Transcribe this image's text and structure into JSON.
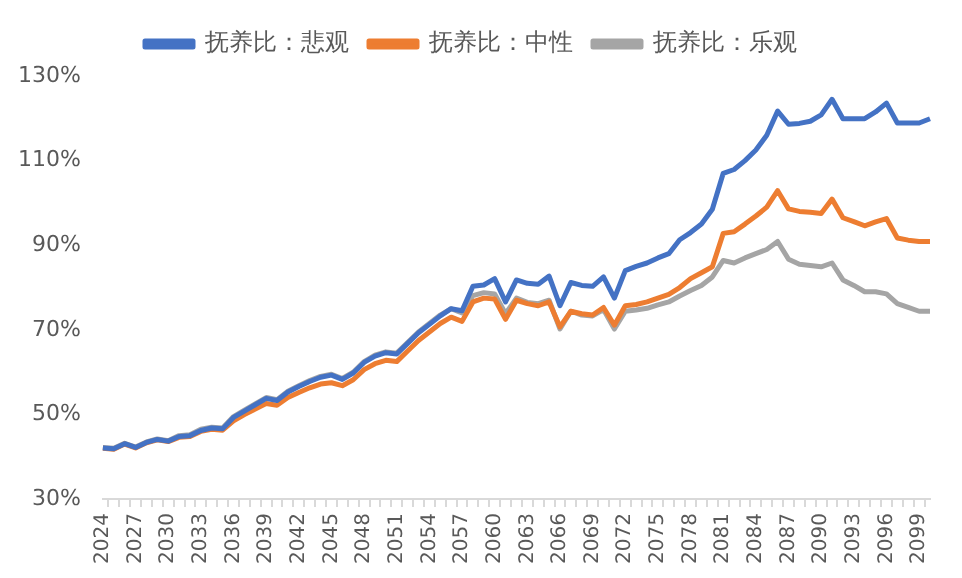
{
  "chart_data": {
    "type": "line",
    "categories": [
      "2024",
      null,
      null,
      "2027",
      null,
      null,
      "2030",
      null,
      null,
      "2033",
      null,
      null,
      "2036",
      null,
      null,
      "2039",
      null,
      null,
      "2042",
      null,
      null,
      "2045",
      null,
      null,
      "2048",
      null,
      null,
      "2051",
      null,
      null,
      "2054",
      null,
      null,
      "2057",
      null,
      null,
      "2060",
      null,
      null,
      "2063",
      null,
      null,
      "2066",
      null,
      null,
      "2069",
      null,
      null,
      "2072",
      null,
      null,
      "2075",
      null,
      null,
      "2078",
      null,
      null,
      "2081",
      null,
      null,
      "2084",
      null,
      null,
      "2087",
      null,
      null,
      "2090",
      null,
      null,
      "2093",
      null,
      null,
      "2096",
      null,
      null,
      "2099",
      null
    ],
    "series": [
      {
        "name": "抚养比：悲观",
        "color": "#4472c4",
        "values": [
          42.1,
          41.9,
          43.1,
          42.2,
          43.4,
          44.1,
          43.7,
          44.8,
          45.0,
          46.2,
          46.8,
          46.6,
          49.3,
          50.8,
          52.3,
          53.8,
          53.3,
          55.3,
          56.6,
          57.8,
          58.8,
          59.3,
          58.3,
          59.8,
          62.3,
          63.8,
          64.6,
          64.3,
          66.8,
          69.3,
          71.3,
          73.3,
          75.0,
          74.5,
          80.3,
          80.6,
          82.1,
          76.6,
          81.8,
          81.0,
          80.8,
          82.7,
          75.7,
          81.2,
          80.5,
          80.3,
          82.5,
          77.5,
          84.0,
          85.0,
          85.8,
          87.0,
          88.0,
          91.3,
          93.0,
          95.0,
          98.5,
          107.0,
          107.9,
          110.0,
          112.5,
          116.0,
          121.7,
          118.6,
          118.8,
          119.3,
          120.8,
          124.5,
          119.9,
          119.9,
          119.9,
          121.5,
          123.6,
          118.9,
          118.9,
          118.9,
          119.9
        ]
      },
      {
        "name": "抚养比：中性",
        "color": "#ed7d31",
        "values": [
          42.0,
          41.8,
          43.0,
          42.1,
          43.3,
          44.0,
          43.6,
          44.6,
          44.8,
          46.0,
          46.5,
          46.3,
          48.5,
          50.0,
          51.3,
          52.6,
          52.2,
          54.0,
          55.2,
          56.3,
          57.2,
          57.5,
          56.8,
          58.2,
          60.6,
          62.0,
          62.8,
          62.5,
          65.0,
          67.5,
          69.5,
          71.5,
          73.0,
          72.0,
          76.6,
          77.5,
          77.3,
          72.5,
          77.0,
          76.2,
          75.7,
          76.6,
          70.7,
          74.4,
          73.8,
          73.5,
          75.3,
          71.1,
          75.7,
          76.0,
          76.6,
          77.5,
          78.4,
          80.0,
          82.1,
          83.5,
          84.9,
          92.8,
          93.2,
          95.0,
          96.9,
          99.0,
          102.9,
          98.6,
          98.0,
          97.8,
          97.5,
          100.9,
          96.5,
          95.6,
          94.6,
          95.5,
          96.3,
          91.7,
          91.2,
          90.9,
          90.9
        ]
      },
      {
        "name": "抚养比：乐观",
        "color": "#a5a5a5",
        "values": [
          42.2,
          42.0,
          43.2,
          42.3,
          43.5,
          44.2,
          43.8,
          45.0,
          45.2,
          46.5,
          47.0,
          46.8,
          49.5,
          51.0,
          52.5,
          54.0,
          53.5,
          55.5,
          56.8,
          58.0,
          59.0,
          59.5,
          58.5,
          60.0,
          62.5,
          64.0,
          64.8,
          64.5,
          67.0,
          69.5,
          71.5,
          73.5,
          75.0,
          74.0,
          78.1,
          78.8,
          78.5,
          73.8,
          77.5,
          76.5,
          76.2,
          77.0,
          70.2,
          74.4,
          73.5,
          73.3,
          74.8,
          70.2,
          74.4,
          74.7,
          75.1,
          75.9,
          76.6,
          78.0,
          79.3,
          80.5,
          82.5,
          86.4,
          85.8,
          87.0,
          88.0,
          89.0,
          90.9,
          86.7,
          85.5,
          85.2,
          84.9,
          85.8,
          81.8,
          80.5,
          79.0,
          79.0,
          78.5,
          76.2,
          75.3,
          74.4,
          74.4
        ]
      }
    ],
    "ylim": [
      30,
      130
    ],
    "yticks": [
      {
        "value": 30,
        "label": "30%"
      },
      {
        "value": 50,
        "label": "50%"
      },
      {
        "value": 70,
        "label": "70%"
      },
      {
        "value": 90,
        "label": "90%"
      },
      {
        "value": 110,
        "label": "110%"
      },
      {
        "value": 130,
        "label": "130%"
      }
    ],
    "grid": false,
    "legend": "top",
    "marker": "none",
    "line_style": "solid"
  }
}
